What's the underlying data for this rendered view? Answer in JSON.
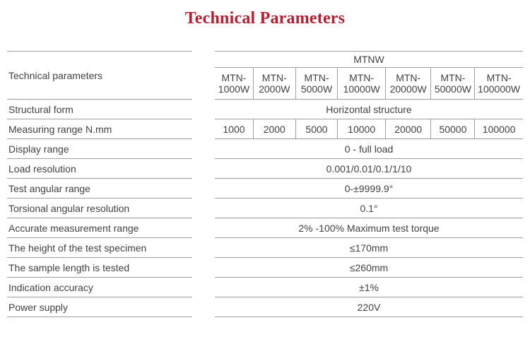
{
  "title": "Technical Parameters",
  "colors": {
    "title_accent": "#b91d30",
    "grid_line": "#9e9e9e",
    "body_text": "#424242"
  },
  "table": {
    "corner_label": "Technical parameters",
    "group_header": "MTNW",
    "models": [
      "MTN-1000W",
      "MTN-2000W",
      "MTN-5000W",
      "MTN-10000W",
      "MTN-20000W",
      "MTN-50000W",
      "MTN-100000W"
    ],
    "rows": [
      {
        "label": "Structural form",
        "value": "Horizontal structure"
      },
      {
        "label": "Measuring range N.mm",
        "values": [
          "1000",
          "2000",
          "5000",
          "10000",
          "20000",
          "50000",
          "100000"
        ]
      },
      {
        "label": "Display range",
        "value": "0 - full load"
      },
      {
        "label": "Load resolution",
        "value": "0.001/0.01/0.1/1/10"
      },
      {
        "label": "Test angular range",
        "value": "0-±9999.9°"
      },
      {
        "label": "Torsional angular resolution",
        "value": "0.1°"
      },
      {
        "label": "Accurate measurement range",
        "value": "2% -100% Maximum test torque"
      },
      {
        "label": "The height of the test specimen",
        "value": "≤170mm"
      },
      {
        "label": "The sample length is tested",
        "value": "≤260mm"
      },
      {
        "label": "Indication accuracy",
        "value": "±1%"
      },
      {
        "label": "Power supply",
        "value": "220V"
      }
    ]
  }
}
